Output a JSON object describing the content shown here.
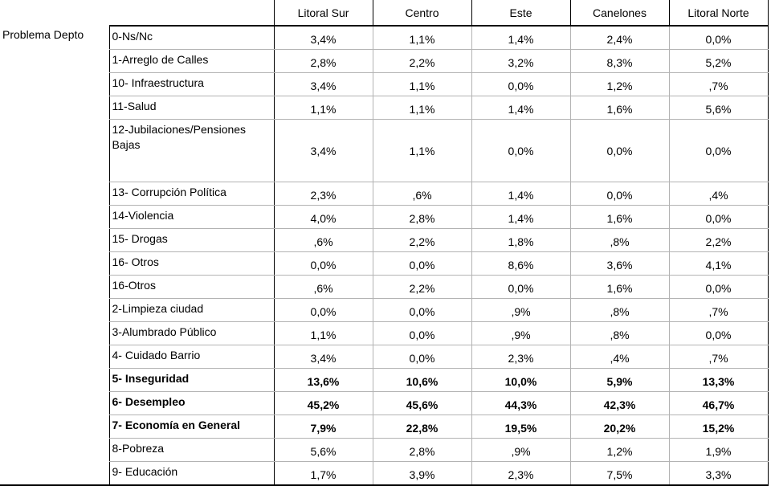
{
  "table": {
    "row_group_label": "Problema Depto",
    "columns": [
      "Litoral Sur",
      "Centro",
      "Este",
      "Canelones",
      "Litoral Norte"
    ],
    "rows": [
      {
        "label": "0-Ns/Nc",
        "values": [
          "3,4%",
          "1,1%",
          "1,4%",
          "2,4%",
          "0,0%"
        ],
        "bold": false
      },
      {
        "label": "1-Arreglo de Calles",
        "values": [
          "2,8%",
          "2,2%",
          "3,2%",
          "8,3%",
          "5,2%"
        ],
        "bold": false
      },
      {
        "label": "10- Infraestructura",
        "values": [
          "3,4%",
          "1,1%",
          "0,0%",
          "1,2%",
          ",7%"
        ],
        "bold": false
      },
      {
        "label": "11-Salud",
        "values": [
          "1,1%",
          "1,1%",
          "1,4%",
          "1,6%",
          "5,6%"
        ],
        "bold": false
      },
      {
        "label": "12-Jubilaciones/Pensiones Bajas",
        "values": [
          "3,4%",
          "1,1%",
          "0,0%",
          "0,0%",
          "0,0%"
        ],
        "bold": false
      },
      {
        "label": "13- Corrupción Política",
        "values": [
          "2,3%",
          ",6%",
          "1,4%",
          "0,0%",
          ",4%"
        ],
        "bold": false
      },
      {
        "label": "14-Violencia",
        "values": [
          "4,0%",
          "2,8%",
          "1,4%",
          "1,6%",
          "0,0%"
        ],
        "bold": false
      },
      {
        "label": "15- Drogas",
        "values": [
          ",6%",
          "2,2%",
          "1,8%",
          ",8%",
          "2,2%"
        ],
        "bold": false
      },
      {
        "label": "16- Otros",
        "values": [
          "0,0%",
          "0,0%",
          "8,6%",
          "3,6%",
          "4,1%"
        ],
        "bold": false
      },
      {
        "label": "16-Otros",
        "values": [
          ",6%",
          "2,2%",
          "0,0%",
          "1,6%",
          "0,0%"
        ],
        "bold": false
      },
      {
        "label": "2-Limpieza ciudad",
        "values": [
          "0,0%",
          "0,0%",
          ",9%",
          ",8%",
          ",7%"
        ],
        "bold": false
      },
      {
        "label": "3-Alumbrado Público",
        "values": [
          "1,1%",
          "0,0%",
          ",9%",
          ",8%",
          "0,0%"
        ],
        "bold": false
      },
      {
        "label": "4- Cuidado Barrio",
        "values": [
          "3,4%",
          "0,0%",
          "2,3%",
          ",4%",
          ",7%"
        ],
        "bold": false
      },
      {
        "label": "5- Inseguridad",
        "values": [
          "13,6%",
          "10,6%",
          "10,0%",
          "5,9%",
          "13,3%"
        ],
        "bold": true
      },
      {
        "label": "6- Desempleo",
        "values": [
          "45,2%",
          "45,6%",
          "44,3%",
          "42,3%",
          "46,7%"
        ],
        "bold": true
      },
      {
        "label": "7- Economía en General",
        "values": [
          "7,9%",
          "22,8%",
          "19,5%",
          "20,2%",
          "15,2%"
        ],
        "bold": true
      },
      {
        "label": "8-Pobreza",
        "values": [
          "5,6%",
          "2,8%",
          ",9%",
          "1,2%",
          "1,9%"
        ],
        "bold": false
      },
      {
        "label": "9- Educación",
        "values": [
          "1,7%",
          "3,9%",
          "2,3%",
          "7,5%",
          "3,3%"
        ],
        "bold": false
      }
    ]
  }
}
